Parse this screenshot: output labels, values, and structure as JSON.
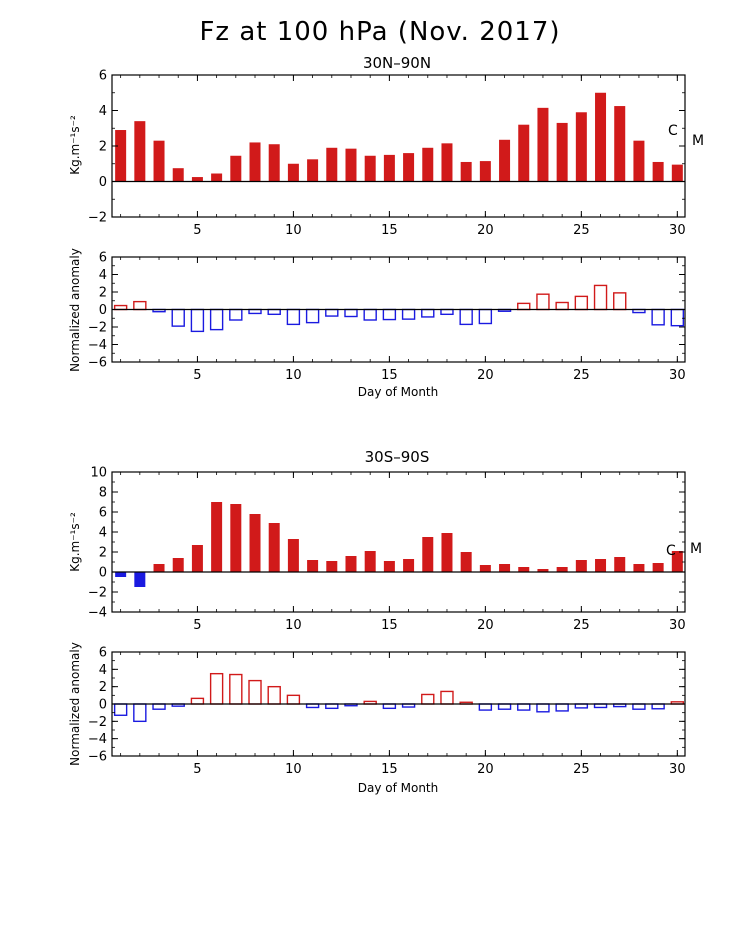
{
  "title": "Fz at 100 hPa (Nov. 2017)",
  "colors": {
    "positive": "#d11a1a",
    "negative": "#1a1ae0",
    "axis": "#000000"
  },
  "chart_data": [
    {
      "type": "bar",
      "title": "30N–90N",
      "xlabel": "",
      "ylabel": "Kg.m⁻¹s⁻²",
      "x": [
        1,
        2,
        3,
        4,
        5,
        6,
        7,
        8,
        9,
        10,
        11,
        12,
        13,
        14,
        15,
        16,
        17,
        18,
        19,
        20,
        21,
        22,
        23,
        24,
        25,
        26,
        27,
        28,
        29,
        30
      ],
      "values": [
        2.9,
        3.4,
        2.3,
        0.75,
        0.25,
        0.45,
        1.45,
        2.2,
        2.1,
        1.0,
        1.25,
        1.9,
        1.85,
        1.45,
        1.5,
        1.6,
        1.9,
        2.15,
        1.1,
        1.15,
        2.35,
        3.2,
        4.15,
        3.3,
        3.9,
        5.0,
        4.25,
        2.3,
        1.1,
        0.95
      ],
      "xticks": [
        "5",
        "10",
        "15",
        "20",
        "25",
        "30"
      ],
      "yticks": [
        "6",
        "4",
        "2",
        "0",
        "−2"
      ],
      "ylim": [
        -2,
        6
      ],
      "style": "filled",
      "annotations": [
        "C",
        "M"
      ]
    },
    {
      "type": "bar",
      "title": "",
      "xlabel": "Day of Month",
      "ylabel": "Normalized anomaly",
      "x": [
        1,
        2,
        3,
        4,
        5,
        6,
        7,
        8,
        9,
        10,
        11,
        12,
        13,
        14,
        15,
        16,
        17,
        18,
        19,
        20,
        21,
        22,
        23,
        24,
        25,
        26,
        27,
        28,
        29,
        30
      ],
      "values": [
        0.45,
        0.9,
        -0.25,
        -1.9,
        -2.5,
        -2.3,
        -1.2,
        -0.45,
        -0.55,
        -1.7,
        -1.5,
        -0.75,
        -0.8,
        -1.2,
        -1.15,
        -1.1,
        -0.85,
        -0.55,
        -1.7,
        -1.6,
        -0.2,
        0.7,
        1.75,
        0.8,
        1.5,
        2.75,
        1.9,
        -0.35,
        -1.75,
        -1.85
      ],
      "xticks": [
        "5",
        "10",
        "15",
        "20",
        "25",
        "30"
      ],
      "yticks": [
        "6",
        "4",
        "2",
        "0",
        "−2",
        "−4",
        "−6"
      ],
      "ylim": [
        -6,
        6
      ],
      "style": "outline"
    },
    {
      "type": "bar",
      "title": "30S–90S",
      "xlabel": "",
      "ylabel": "Kg.m⁻¹s⁻²",
      "x": [
        1,
        2,
        3,
        4,
        5,
        6,
        7,
        8,
        9,
        10,
        11,
        12,
        13,
        14,
        15,
        16,
        17,
        18,
        19,
        20,
        21,
        22,
        23,
        24,
        25,
        26,
        27,
        28,
        29,
        30
      ],
      "values": [
        -0.5,
        -1.5,
        0.8,
        1.4,
        2.7,
        7.0,
        6.8,
        5.8,
        4.9,
        3.3,
        1.2,
        1.1,
        1.6,
        2.1,
        1.1,
        1.3,
        3.5,
        3.9,
        2.0,
        0.7,
        0.8,
        0.5,
        0.3,
        0.5,
        1.2,
        1.3,
        1.5,
        0.8,
        0.9,
        2.1
      ],
      "xticks": [
        "5",
        "10",
        "15",
        "20",
        "25",
        "30"
      ],
      "yticks": [
        "10",
        "8",
        "6",
        "4",
        "2",
        "0",
        "−2",
        "−4"
      ],
      "ylim": [
        -4,
        10
      ],
      "style": "filled",
      "annotations": [
        "C",
        "M"
      ]
    },
    {
      "type": "bar",
      "title": "",
      "xlabel": "Day of Month",
      "ylabel": "Normalized anomaly",
      "x": [
        1,
        2,
        3,
        4,
        5,
        6,
        7,
        8,
        9,
        10,
        11,
        12,
        13,
        14,
        15,
        16,
        17,
        18,
        19,
        20,
        21,
        22,
        23,
        24,
        25,
        26,
        27,
        28,
        29,
        30
      ],
      "values": [
        -1.3,
        -2.0,
        -0.6,
        -0.25,
        0.65,
        3.5,
        3.4,
        2.7,
        2.0,
        1.0,
        -0.4,
        -0.5,
        -0.2,
        0.3,
        -0.5,
        -0.35,
        1.1,
        1.45,
        0.2,
        -0.7,
        -0.6,
        -0.7,
        -0.9,
        -0.8,
        -0.45,
        -0.4,
        -0.3,
        -0.6,
        -0.55,
        0.25
      ],
      "xticks": [
        "5",
        "10",
        "15",
        "20",
        "25",
        "30"
      ],
      "yticks": [
        "6",
        "4",
        "2",
        "0",
        "−2",
        "−4",
        "−6"
      ],
      "ylim": [
        -6,
        6
      ],
      "style": "outline"
    }
  ]
}
